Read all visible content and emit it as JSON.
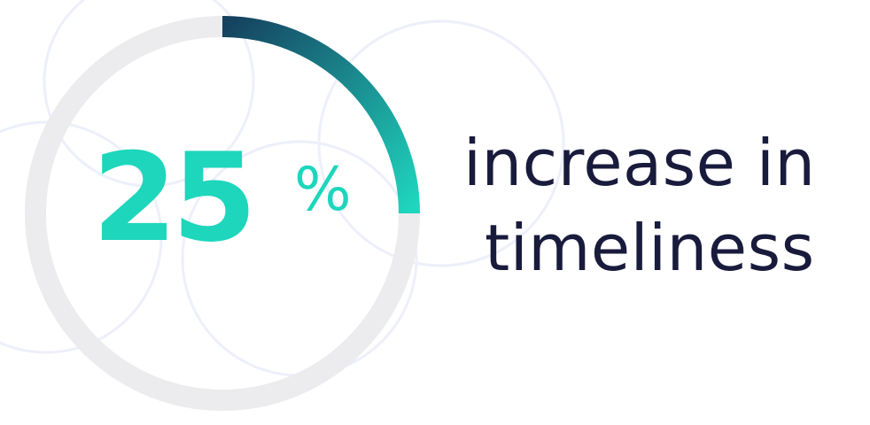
{
  "stat": {
    "value": "25",
    "unit": "%",
    "fraction": 0.25
  },
  "caption": {
    "line1": "increase in",
    "line2": "timeliness"
  },
  "colors": {
    "accent": "#1dd6bc",
    "arc_start": "#15415f",
    "arc_end": "#1fd6bf",
    "track": "#ececef",
    "text": "#191b3c",
    "decor": "#edeffa"
  }
}
